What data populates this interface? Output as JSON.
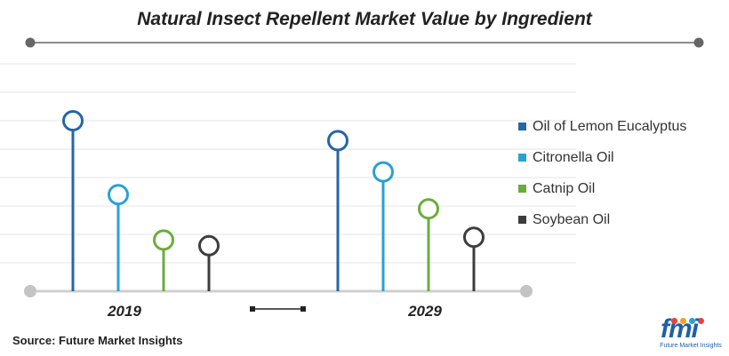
{
  "chart_data": {
    "type": "lollipop",
    "title": "Natural Insect Repellent Market Value by Ingredient",
    "categories": [
      "2019",
      "2029"
    ],
    "ylim": [
      0,
      8
    ],
    "grid": true,
    "legend_position": "right",
    "series": [
      {
        "name": "Oil of Lemon Eucalyptus",
        "color": "#2566a8",
        "values": [
          6.0,
          5.3
        ]
      },
      {
        "name": "Citronella Oil",
        "color": "#2aa0d6",
        "values": [
          3.4,
          4.2
        ]
      },
      {
        "name": "Catnip Oil",
        "color": "#6aad3d",
        "values": [
          1.8,
          2.9
        ]
      },
      {
        "name": "Soybean Oil",
        "color": "#3d3d3d",
        "values": [
          1.6,
          1.9
        ]
      }
    ]
  },
  "source": "Source: Future Market Insights",
  "logo": {
    "letters": "fmi",
    "tagline": "Future Market Insights",
    "dot_colors": [
      "#e8423a",
      "#f2a21c",
      "#2aa0d6",
      "#e8423a"
    ]
  }
}
